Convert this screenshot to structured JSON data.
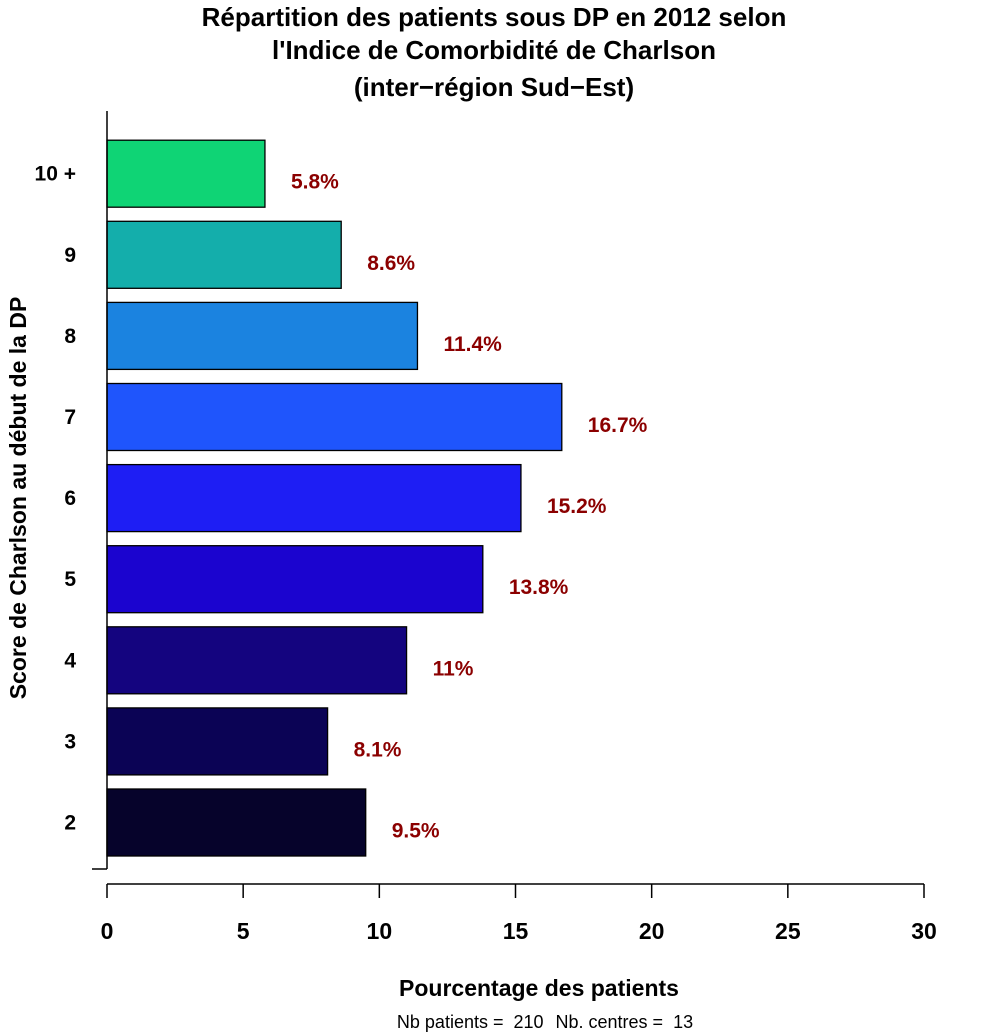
{
  "chart_data": {
    "type": "bar",
    "orientation": "horizontal",
    "title_lines": [
      "Répartition des patients sous DP en 2012 selon",
      "l'Indice de Comorbidité de Charlson",
      "(inter−région Sud−Est)"
    ],
    "xlabel": "Pourcentage des patients",
    "ylabel": "Score de Charlson au début de la DP",
    "categories": [
      "2",
      "3",
      "4",
      "5",
      "6",
      "7",
      "8",
      "9",
      "10 +"
    ],
    "values": [
      9.5,
      8.1,
      11.0,
      13.8,
      15.2,
      16.7,
      11.4,
      8.6,
      5.8
    ],
    "value_labels": [
      "9.5%",
      "8.1%",
      "11%",
      "13.8%",
      "15.2%",
      "16.7%",
      "11.4%",
      "8.6%",
      "5.8%"
    ],
    "bar_colors": [
      "#06032b",
      "#0b0355",
      "#14047f",
      "#1b04cf",
      "#1e1ef4",
      "#1f55fc",
      "#1b83e0",
      "#14aeab",
      "#0fd475"
    ],
    "label_color": "#8b0000",
    "xlim": [
      0,
      30
    ],
    "xticks": [
      0,
      5,
      10,
      15,
      20,
      25,
      30
    ],
    "grid": false,
    "legend": "none"
  },
  "footer": {
    "patients": "Nb patients =  210",
    "centres": "Nb. centres =  13"
  }
}
